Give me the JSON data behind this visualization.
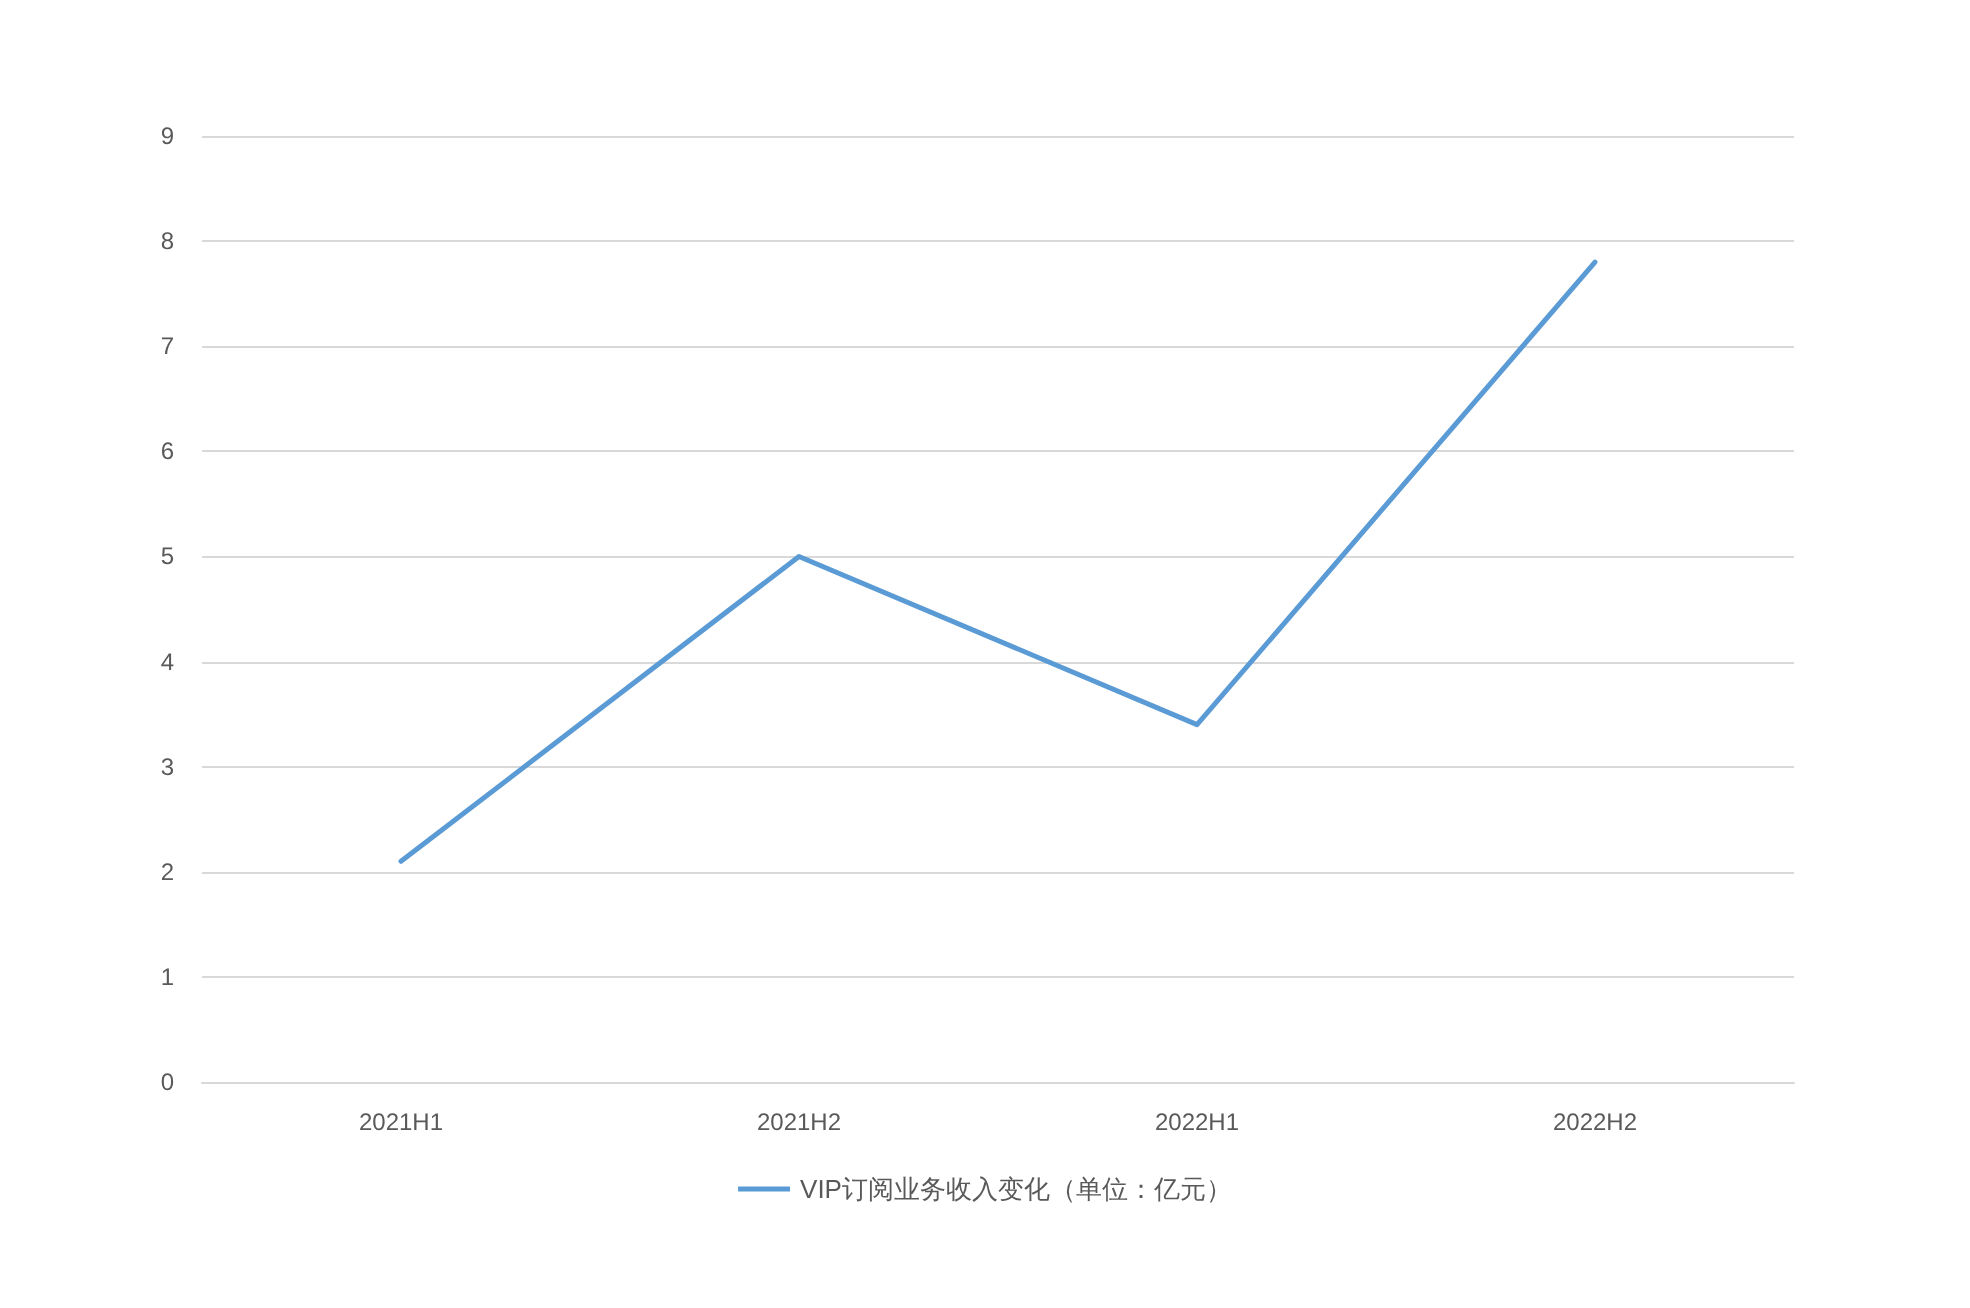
{
  "chart_data": {
    "type": "line",
    "categories": [
      "2021H1",
      "2021H2",
      "2022H1",
      "2022H2"
    ],
    "series": [
      {
        "name": "VIP订阅业务收入变化（单位：亿元）",
        "color": "#5b9bd5",
        "values": [
          2.1,
          5.0,
          3.4,
          7.8
        ]
      }
    ],
    "ylim": [
      0,
      9
    ],
    "yticks": [
      0,
      1,
      2,
      3,
      4,
      5,
      6,
      7,
      8,
      9
    ],
    "grid": "y",
    "legend": "bottom",
    "marker": "none",
    "line_style": "solid"
  }
}
